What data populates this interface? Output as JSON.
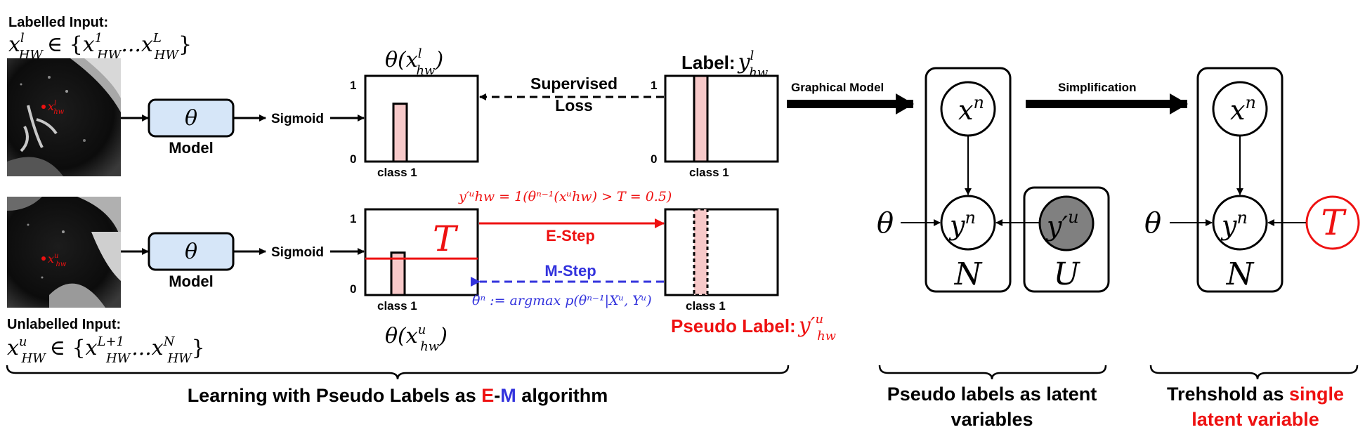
{
  "labelled": {
    "title": "Labelled Input:",
    "set_lhs": "x",
    "set_lhs_sup": "l",
    "set_lhs_sub": "HW",
    "set_rhs": "∈ {",
    "set_first": "x",
    "set_first_sup": "1",
    "set_first_sub": "HW",
    "set_dots": "...",
    "set_last": "x",
    "set_last_sup": "L",
    "set_last_sub": "HW",
    "set_close": "}",
    "scan_mark": "x",
    "scan_mark_sup": "l",
    "scan_mark_sub": "hw"
  },
  "unlabelled": {
    "title": "Unlabelled Input:",
    "set_lhs": "x",
    "set_lhs_sup": "u",
    "set_lhs_sub": "HW",
    "set_rhs": "∈ {",
    "set_first": "x",
    "set_first_sup": "L+1",
    "set_first_sub": "HW",
    "set_dots": "...",
    "set_last": "x",
    "set_last_sup": "N",
    "set_last_sub": "HW",
    "set_close": "}",
    "scan_mark": "x",
    "scan_mark_sup": "u",
    "scan_mark_sub": "hw"
  },
  "model": {
    "theta": "θ",
    "label": "Model"
  },
  "sigmoid_label": "Sigmoid",
  "top_pred": {
    "title_fn": "θ(x",
    "title_sup": "l",
    "title_sub": "hw",
    "title_close": ")",
    "axis_max": "1",
    "axis_min": "0",
    "category": "class 1",
    "value": 0.75
  },
  "top_label": {
    "title": "Label:",
    "title_var": "y",
    "title_sup": "l",
    "title_sub": "hw",
    "axis_max": "1",
    "axis_min": "0",
    "category": "class 1",
    "value": 1.0
  },
  "supervised_loss": {
    "line1": "Supervised",
    "line2": "Loss"
  },
  "bottom_pred": {
    "title_fn": "θ(x",
    "title_sup": "u",
    "title_sub": "hw",
    "title_close": ")",
    "axis_max": "1",
    "axis_min": "0",
    "category": "class 1",
    "value": 0.55,
    "threshold_label": "T",
    "threshold_value": 0.5
  },
  "bottom_label": {
    "category": "class 1",
    "value": 1.0,
    "title": "Pseudo Label:",
    "title_var": "y′",
    "title_sup": "u",
    "title_sub": "hw"
  },
  "e_step": {
    "label": "E-Step",
    "formula": "y′ᵘhw = 1(θⁿ⁻¹(xᵘhw) > T = 0.5)"
  },
  "m_step": {
    "label": "M-Step",
    "formula": "θⁿ := argmax p(θⁿ⁻¹|Xᵘ, Yᵘ)"
  },
  "graphical_model_label": "Graphical Model",
  "simplification_label": "Simplification",
  "plate1": {
    "x_node": "x",
    "x_sup": "n",
    "y_node": "y",
    "y_sup": "n",
    "theta": "θ",
    "plate_label": "N",
    "latent_node": "y′",
    "latent_sup": "u",
    "latent_plate": "U"
  },
  "plate2": {
    "x_node": "x",
    "x_sup": "n",
    "y_node": "y",
    "y_sup": "n",
    "theta": "θ",
    "plate_label": "N",
    "threshold_node": "T"
  },
  "captions": {
    "main_prefix": "Learning with Pseudo Labels as ",
    "main_e": "E",
    "main_dash": "-",
    "main_m": "M",
    "main_suffix": " algorithm",
    "latent_line1": "Pseudo labels as latent",
    "latent_line2": "variables",
    "threshold_prefix": "Trehshold as ",
    "threshold_highlight": "single",
    "threshold_line2": "latent variable"
  },
  "colors": {
    "red": "#ee1111",
    "blue": "#3333dd",
    "bar_fill": "#f7c9c9",
    "model_fill": "#d6e6f8",
    "latent_fill": "#808080"
  }
}
